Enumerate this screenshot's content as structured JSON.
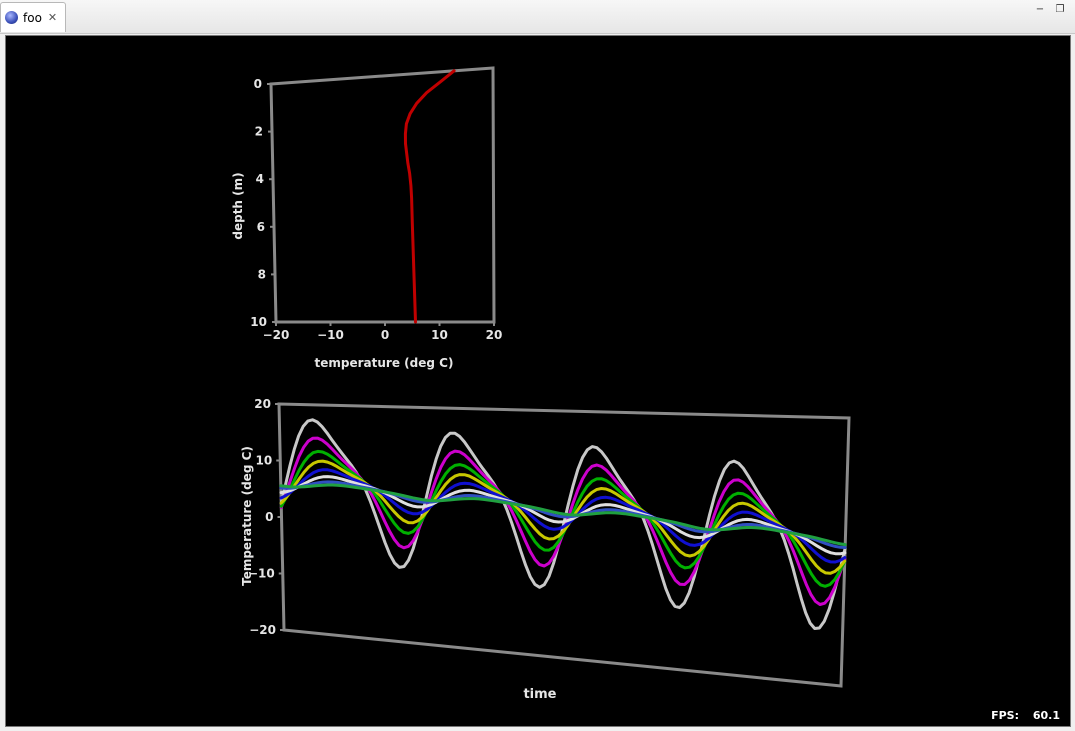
{
  "window": {
    "tab_label": "foo",
    "tab_icon": "globe-icon",
    "close_icon": "close-icon",
    "minimize_icon": "minimize-icon",
    "restore_icon": "restore-icon"
  },
  "fps": {
    "label": "FPS:",
    "value": "60.1"
  },
  "chart_data": [
    {
      "type": "line",
      "xlabel": "temperature (deg C)",
      "ylabel": "depth (m)",
      "xlim": [
        -20,
        20
      ],
      "ylim": [
        0,
        10
      ],
      "y_inverted": true,
      "x_ticks": [
        "−20",
        "−10",
        "0",
        "10",
        "20"
      ],
      "y_ticks": [
        "0",
        "2",
        "4",
        "6",
        "8",
        "10"
      ],
      "grid": false,
      "series": [
        {
          "color": "#c00000",
          "x": [
            13,
            10.5,
            8,
            6.2,
            5,
            4.3,
            4.1,
            4.1,
            4.3,
            4.5,
            4.8,
            5.0,
            5.1,
            5.2,
            5.3,
            5.4,
            5.5,
            5.6
          ],
          "y": [
            0,
            0.4,
            0.8,
            1.2,
            1.6,
            2.0,
            2.4,
            2.8,
            3.2,
            3.6,
            4.0,
            4.5,
            5.0,
            6.0,
            7.0,
            8.0,
            9.0,
            10
          ]
        }
      ]
    },
    {
      "type": "line",
      "xlabel": "time",
      "ylabel": "Temperature (deg C)",
      "ylim": [
        -20,
        20
      ],
      "y_ticks": [
        "20",
        "10",
        "0",
        "−10",
        "−20"
      ],
      "grid": false,
      "x_samples": 120,
      "x_max": 9.9,
      "series": [
        {
          "color": "#c8c8c8",
          "amplitude": 11.0,
          "phase": 0.0,
          "start": 7.0,
          "end": 1.0
        },
        {
          "color": "#cc00cc",
          "amplitude": 8.0,
          "phase": 0.18,
          "start": 6.8,
          "end": 1.2
        },
        {
          "color": "#00b000",
          "amplitude": 5.8,
          "phase": 0.34,
          "start": 6.6,
          "end": 1.4
        },
        {
          "color": "#c8c800",
          "amplitude": 4.2,
          "phase": 0.5,
          "start": 6.5,
          "end": 1.5
        },
        {
          "color": "#1010d0",
          "amplitude": 2.8,
          "phase": 0.68,
          "start": 6.4,
          "end": 1.6
        },
        {
          "color": "#e0e0e0",
          "amplitude": 1.7,
          "phase": 0.86,
          "start": 6.3,
          "end": 1.6
        },
        {
          "color": "#3050c0",
          "amplitude": 0.9,
          "phase": 1.1,
          "start": 6.2,
          "end": 1.7
        },
        {
          "color": "#20a040",
          "amplitude": 0.5,
          "phase": 1.4,
          "start": 6.1,
          "end": 1.7
        }
      ]
    }
  ]
}
